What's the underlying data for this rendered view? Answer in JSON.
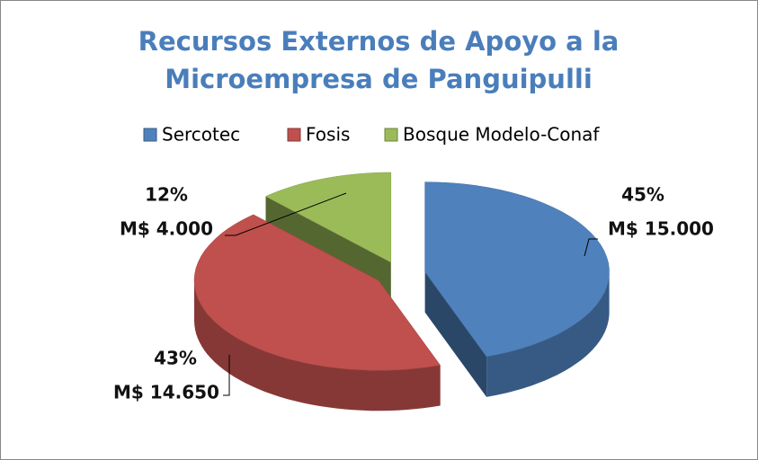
{
  "chart_data": {
    "type": "pie",
    "title": [
      "Recursos Externos de Apoyo a la",
      "Microempresa de Panguipulli"
    ],
    "categories": [
      "Sercotec",
      "Fosis",
      "Bosque Modelo-Conaf"
    ],
    "values": [
      15000,
      14650,
      4000
    ],
    "value_labels": [
      "M$ 15.000",
      "M$ 14.650",
      "M$ 4.000"
    ],
    "percentages": [
      45,
      43,
      12
    ],
    "percentage_labels": [
      "45%",
      "43%",
      "12%"
    ],
    "colors": [
      "#4f81bd",
      "#c0504d",
      "#9bbb59"
    ],
    "legend": "top",
    "exploded": true
  }
}
